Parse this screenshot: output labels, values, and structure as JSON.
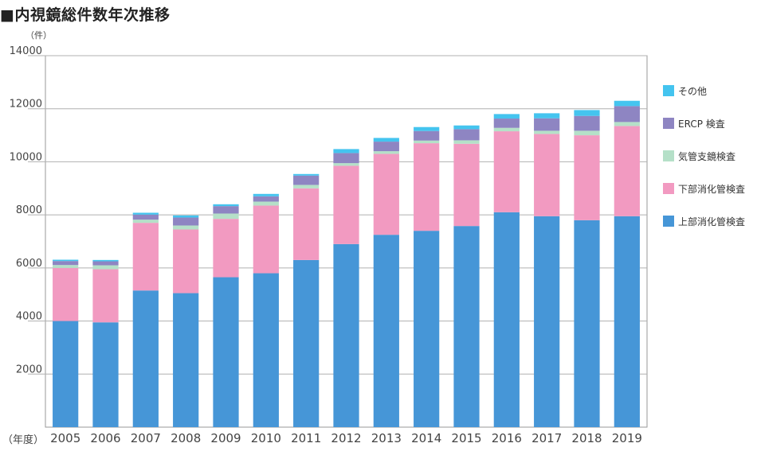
{
  "chart_data": {
    "type": "bar",
    "stacked": true,
    "title": "■内視鏡総件数年次推移",
    "ylabel": "（件）",
    "xlabel": "（年度）",
    "ylim": [
      0,
      14000
    ],
    "yticks": [
      2000,
      4000,
      6000,
      8000,
      10000,
      12000,
      14000
    ],
    "grid": true,
    "legend_position": "right",
    "categories": [
      "2005",
      "2006",
      "2007",
      "2008",
      "2009",
      "2010",
      "2011",
      "2012",
      "2013",
      "2014",
      "2015",
      "2016",
      "2017",
      "2018",
      "2019"
    ],
    "series": [
      {
        "name": "上部消化管検査",
        "color": "#4696d7",
        "values": [
          4000,
          3950,
          5150,
          5050,
          5650,
          5800,
          6300,
          6900,
          7250,
          7400,
          7580,
          8100,
          7950,
          7800,
          7950
        ]
      },
      {
        "name": "下部消化管検査",
        "color": "#f29ac1",
        "values": [
          2000,
          2000,
          2550,
          2400,
          2200,
          2550,
          2700,
          2950,
          3050,
          3300,
          3100,
          3050,
          3100,
          3200,
          3400
        ]
      },
      {
        "name": "気管支鏡検査",
        "color": "#b5e0c8",
        "values": [
          110,
          150,
          120,
          150,
          200,
          150,
          130,
          100,
          100,
          100,
          130,
          130,
          120,
          170,
          150
        ]
      },
      {
        "name": "ERCP 検査",
        "color": "#8e85c2",
        "values": [
          150,
          150,
          190,
          300,
          280,
          200,
          350,
          380,
          360,
          360,
          420,
          350,
          470,
          560,
          600
        ]
      },
      {
        "name": "その他",
        "color": "#44c4ef",
        "values": [
          50,
          50,
          70,
          80,
          70,
          90,
          60,
          150,
          140,
          150,
          140,
          170,
          190,
          220,
          200
        ]
      }
    ],
    "legend_order": [
      "その他",
      "ERCP 検査",
      "気管支鏡検査",
      "下部消化管検査",
      "上部消化管検査"
    ]
  }
}
